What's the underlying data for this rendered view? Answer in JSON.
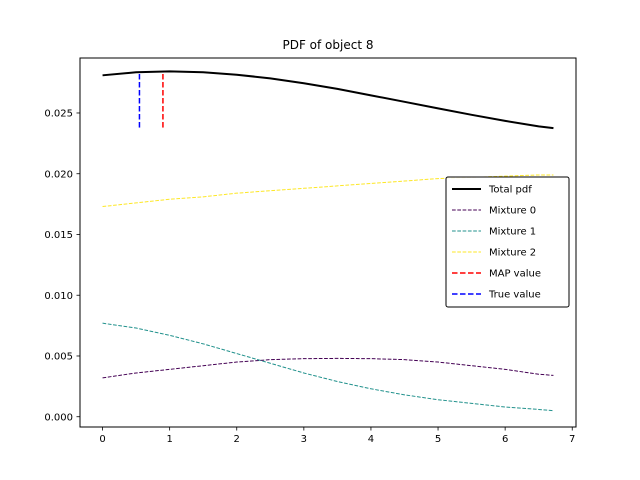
{
  "chart_data": {
    "type": "line",
    "title": "PDF of object 8",
    "xlabel": "",
    "ylabel": "",
    "xlim": [
      -0.336,
      7.056
    ],
    "ylim": [
      -0.000845,
      0.029525
    ],
    "x_ticks": [
      0,
      1,
      2,
      3,
      4,
      5,
      6,
      7
    ],
    "x_tick_labels": [
      "0",
      "1",
      "2",
      "3",
      "4",
      "5",
      "6",
      "7"
    ],
    "y_ticks": [
      0.0,
      0.005,
      0.01,
      0.015,
      0.02,
      0.025
    ],
    "y_tick_labels": [
      "0.000",
      "0.005",
      "0.010",
      "0.015",
      "0.020",
      "0.025"
    ],
    "grid": false,
    "legend_position": "center-right",
    "x": [
      0,
      0.5,
      1,
      1.5,
      2,
      2.5,
      3,
      3.5,
      4,
      4.5,
      5,
      5.5,
      6,
      6.5,
      6.72
    ],
    "series": [
      {
        "name": "Total pdf",
        "color": "#000000",
        "style": "solid",
        "values": [
          0.0281,
          0.02835,
          0.02842,
          0.02835,
          0.02815,
          0.02785,
          0.02745,
          0.02698,
          0.02645,
          0.02592,
          0.02538,
          0.02485,
          0.02435,
          0.0239,
          0.02375
        ]
      },
      {
        "name": "Mixture 0",
        "color": "#440154",
        "style": "dashed",
        "values": [
          0.0032,
          0.0036,
          0.0039,
          0.0042,
          0.0045,
          0.0047,
          0.00478,
          0.0048,
          0.00478,
          0.0047,
          0.0045,
          0.0042,
          0.0039,
          0.0035,
          0.0034
        ]
      },
      {
        "name": "Mixture 1",
        "color": "#21918c",
        "style": "dashed",
        "values": [
          0.0077,
          0.0073,
          0.0067,
          0.006,
          0.0052,
          0.0044,
          0.0036,
          0.0029,
          0.0023,
          0.0018,
          0.0014,
          0.0011,
          0.0008,
          0.0006,
          0.0005
        ]
      },
      {
        "name": "Mixture 2",
        "color": "#fde725",
        "style": "dashed",
        "values": [
          0.0173,
          0.0176,
          0.0179,
          0.0181,
          0.0184,
          0.0186,
          0.0188,
          0.019,
          0.0192,
          0.0194,
          0.0196,
          0.0197,
          0.0198,
          0.0199,
          0.0199
        ]
      }
    ],
    "vlines": [
      {
        "name": "MAP value",
        "x": 0.9,
        "ymin": 0.0238,
        "ymax": 0.0284,
        "color": "#ff0000",
        "style": "dashed"
      },
      {
        "name": "True value",
        "x": 0.55,
        "ymin": 0.0238,
        "ymax": 0.0283,
        "color": "#0000ff",
        "style": "dashed"
      }
    ],
    "legend": [
      {
        "label": "Total pdf",
        "color": "#000000",
        "style": "solid",
        "width": 2
      },
      {
        "label": "Mixture 0",
        "color": "#440154",
        "style": "dashed",
        "width": 1
      },
      {
        "label": "Mixture 1",
        "color": "#21918c",
        "style": "dashed",
        "width": 1
      },
      {
        "label": "Mixture 2",
        "color": "#fde725",
        "style": "dashed",
        "width": 1
      },
      {
        "label": "MAP value",
        "color": "#ff0000",
        "style": "dashed",
        "width": 1.5
      },
      {
        "label": "True value",
        "color": "#0000ff",
        "style": "dashed",
        "width": 1.5
      }
    ]
  }
}
